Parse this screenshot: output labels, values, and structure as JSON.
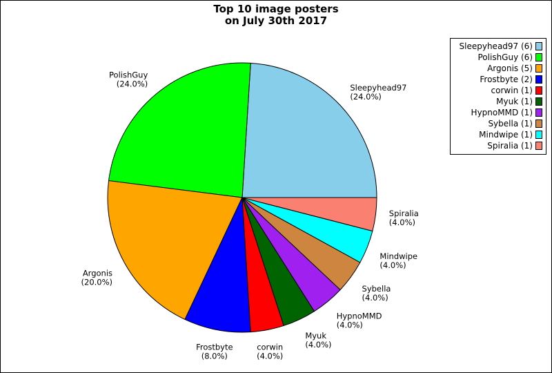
{
  "chart_data": {
    "type": "pie",
    "title_lines": [
      "Top 10 image posters",
      "on July 30th 2017"
    ],
    "start_angle_deg": 0,
    "direction": "counterclockwise",
    "legend_placement": "top-right",
    "slices": [
      {
        "name": "Sleepyhead97",
        "count": 6,
        "percent_label": "(24.0%)",
        "legend_label": "Sleepyhead97 (6)",
        "color": "#87ceeb"
      },
      {
        "name": "PolishGuy",
        "count": 6,
        "percent_label": "(24.0%)",
        "legend_label": "PolishGuy (6)",
        "color": "#00ff00"
      },
      {
        "name": "Argonis",
        "count": 5,
        "percent_label": "(20.0%)",
        "legend_label": "Argonis (5)",
        "color": "#ffa500"
      },
      {
        "name": "Frostbyte",
        "count": 2,
        "percent_label": "(8.0%)",
        "legend_label": "Frostbyte (2)",
        "color": "#0000ff"
      },
      {
        "name": "corwin",
        "count": 1,
        "percent_label": "(4.0%)",
        "legend_label": "corwin (1)",
        "color": "#ff0000"
      },
      {
        "name": "Myuk",
        "count": 1,
        "percent_label": "(4.0%)",
        "legend_label": "Myuk (1)",
        "color": "#006400"
      },
      {
        "name": "HypnoMMD",
        "count": 1,
        "percent_label": "(4.0%)",
        "legend_label": "HypnoMMD (1)",
        "color": "#a020f0"
      },
      {
        "name": "Sybella",
        "count": 1,
        "percent_label": "(4.0%)",
        "legend_label": "Sybella (1)",
        "color": "#cd853f"
      },
      {
        "name": "Mindwipe",
        "count": 1,
        "percent_label": "(4.0%)",
        "legend_label": "Mindwipe (1)",
        "color": "#00ffff"
      },
      {
        "name": "Spiralia",
        "count": 1,
        "percent_label": "(4.0%)",
        "legend_label": "Spiralia (1)",
        "color": "#fa8072"
      }
    ]
  }
}
